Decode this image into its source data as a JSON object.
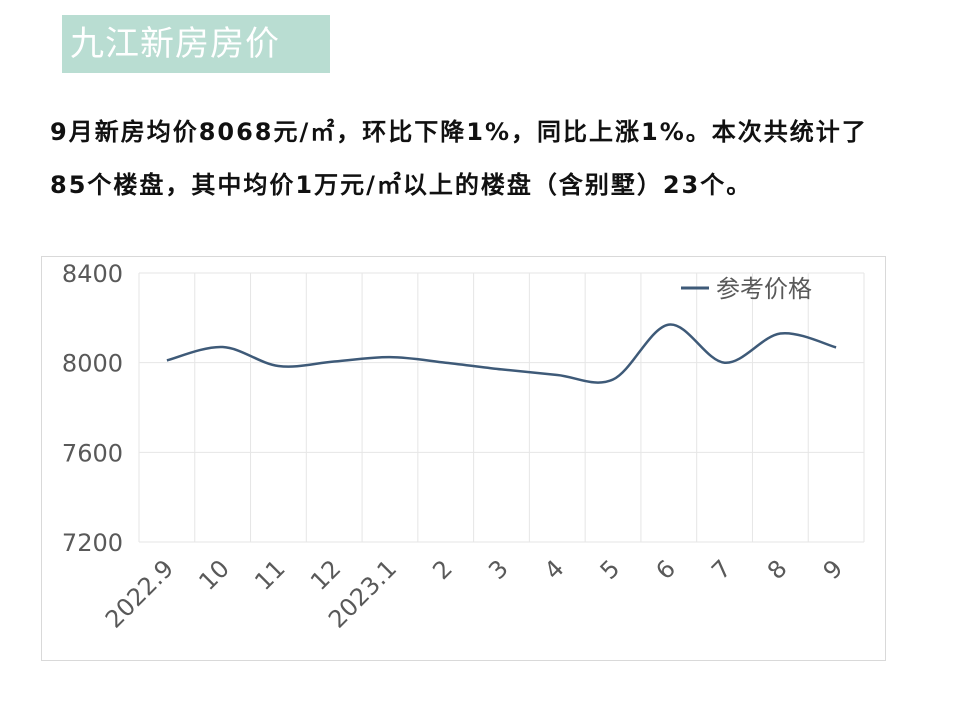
{
  "header": {
    "title": "九江新房房价"
  },
  "summary": {
    "text": "9月新房均价8068元/㎡，环比下降1%，同比上涨1%。本次共统计了85个楼盘，其中均价1万元/㎡以上的楼盘（含别墅）23个。"
  },
  "colors": {
    "line": "#3e5a78",
    "title_bg": "#b9ddd2",
    "grid": "#e6e6e6"
  },
  "chart_data": {
    "type": "line",
    "categories": [
      "2022.9",
      "10",
      "11",
      "12",
      "2023.1",
      "2",
      "3",
      "4",
      "5",
      "6",
      "7",
      "8",
      "9"
    ],
    "series": [
      {
        "name": "参考价格",
        "values": [
          8010,
          8070,
          7985,
          8005,
          8025,
          8000,
          7970,
          7945,
          7925,
          8170,
          8000,
          8130,
          8068
        ]
      }
    ],
    "yticks": [
      "8400",
      "8000",
      "7600",
      "7200"
    ],
    "ylim": [
      7200,
      8400
    ],
    "grid": true,
    "legend": "top-right"
  }
}
